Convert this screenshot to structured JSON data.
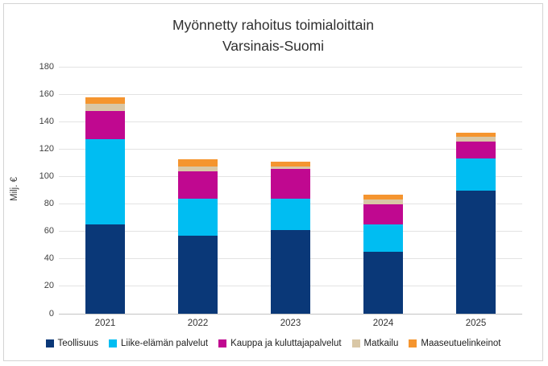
{
  "chart_data": {
    "type": "bar",
    "stacked": true,
    "title": "Myönnetty rahoitus toimialoittain",
    "subtitle": "Varsinais-Suomi",
    "ylabel": "Milj. €",
    "ylim": [
      0,
      180
    ],
    "ytick_step": 20,
    "grid": true,
    "legend_position": "bottom",
    "categories": [
      "2021",
      "2022",
      "2023",
      "2024",
      "2025"
    ],
    "series": [
      {
        "name": "Teollisuus",
        "color": "#0a3878",
        "values": [
          65,
          57,
          61,
          45,
          90
        ]
      },
      {
        "name": "Liike-elämän palvelut",
        "color": "#00bdf2",
        "values": [
          62,
          27,
          23,
          20,
          23
        ]
      },
      {
        "name": "Kauppa ja kuluttajapalvelut",
        "color": "#c00890",
        "values": [
          21,
          20,
          21.5,
          14.5,
          12.5
        ]
      },
      {
        "name": "Matkailu",
        "color": "#d9c7a6",
        "values": [
          5,
          3.5,
          2,
          3.5,
          3.5
        ]
      },
      {
        "name": "Maaseutuelinkeinot",
        "color": "#f5952f",
        "values": [
          4.5,
          5,
          3.5,
          3.5,
          3
        ]
      }
    ]
  }
}
